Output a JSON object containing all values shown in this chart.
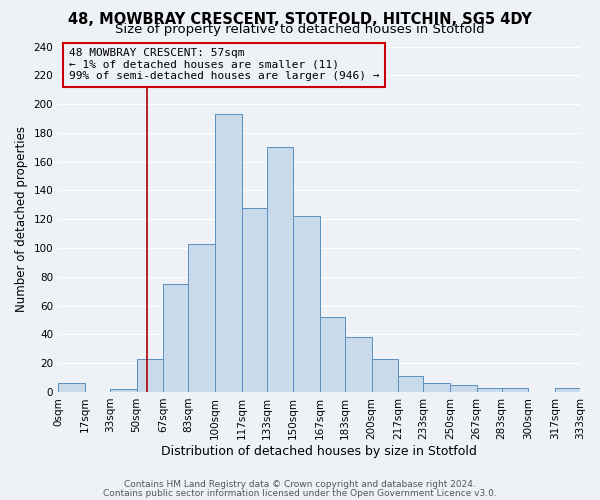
{
  "title": "48, MOWBRAY CRESCENT, STOTFOLD, HITCHIN, SG5 4DY",
  "subtitle": "Size of property relative to detached houses in Stotfold",
  "xlabel": "Distribution of detached houses by size in Stotfold",
  "ylabel": "Number of detached properties",
  "bin_edges": [
    0,
    17,
    33,
    50,
    67,
    83,
    100,
    117,
    133,
    150,
    167,
    183,
    200,
    217,
    233,
    250,
    267,
    283,
    300,
    317,
    333
  ],
  "bar_heights": [
    6,
    0,
    2,
    23,
    75,
    103,
    193,
    128,
    170,
    122,
    52,
    38,
    23,
    11,
    6,
    5,
    3,
    3,
    0,
    3
  ],
  "bar_facecolor": "#c9daea",
  "bar_edgecolor": "#5a90c0",
  "xlim": [
    0,
    333
  ],
  "ylim": [
    0,
    240
  ],
  "yticks": [
    0,
    20,
    40,
    60,
    80,
    100,
    120,
    140,
    160,
    180,
    200,
    220,
    240
  ],
  "xtick_labels": [
    "0sqm",
    "17sqm",
    "33sqm",
    "50sqm",
    "67sqm",
    "83sqm",
    "100sqm",
    "117sqm",
    "133sqm",
    "150sqm",
    "167sqm",
    "183sqm",
    "200sqm",
    "217sqm",
    "233sqm",
    "250sqm",
    "267sqm",
    "283sqm",
    "300sqm",
    "317sqm",
    "333sqm"
  ],
  "vline_x": 57,
  "vline_color": "#aa0000",
  "annotation_line1": "48 MOWBRAY CRESCENT: 57sqm",
  "annotation_line2": "← 1% of detached houses are smaller (11)",
  "annotation_line3": "99% of semi-detached houses are larger (946) →",
  "annotation_box_edgecolor": "#cc0000",
  "footer1": "Contains HM Land Registry data © Crown copyright and database right 2024.",
  "footer2": "Contains public sector information licensed under the Open Government Licence v3.0.",
  "bg_color": "#eef2f7",
  "grid_color": "#ffffff",
  "title_fontsize": 10.5,
  "subtitle_fontsize": 9.5,
  "xlabel_fontsize": 9,
  "ylabel_fontsize": 8.5,
  "tick_fontsize": 7.5,
  "annotation_fontsize": 8,
  "footer_fontsize": 6.5
}
